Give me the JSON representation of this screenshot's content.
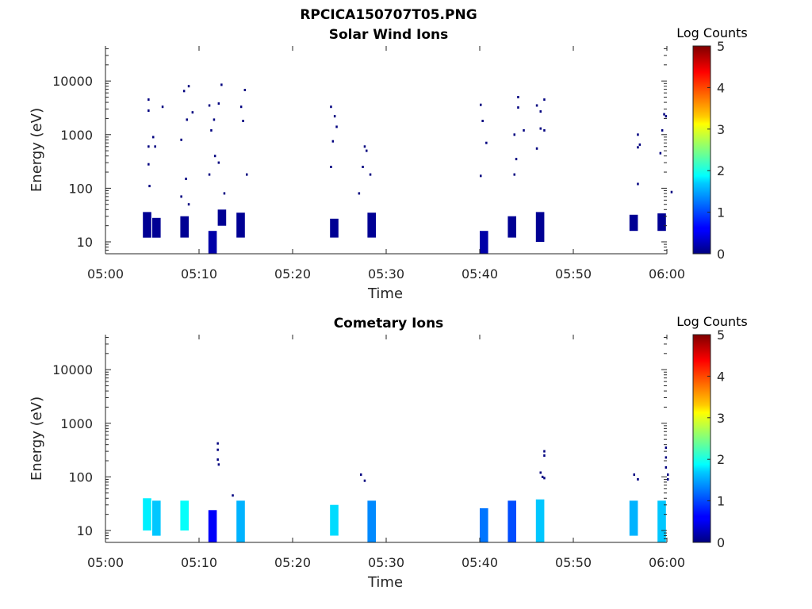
{
  "figure": {
    "title": "RPCICA150707T05.PNG"
  },
  "chart_data": [
    {
      "type": "heatmap",
      "title": "Solar Wind Ions",
      "xlabel": "Time",
      "ylabel": "Energy (eV)",
      "yscale": "log",
      "ylim": [
        6,
        45000
      ],
      "xlim": [
        "05:00",
        "06:00"
      ],
      "x_ticks": [
        "05:00",
        "05:10",
        "05:20",
        "05:30",
        "05:40",
        "05:50",
        "06:00"
      ],
      "y_ticks": [
        "10",
        "100",
        "1000",
        "10000"
      ],
      "colorbar": {
        "label": "Log Counts",
        "range": [
          0,
          5
        ],
        "ticks": [
          "0",
          "1",
          "2",
          "3",
          "4",
          "5"
        ],
        "colormap": "jet"
      },
      "grid": false,
      "cells": [
        {
          "t": "05:04",
          "e_min": 12,
          "e_max": 36,
          "log_counts": 0.1
        },
        {
          "t": "05:05",
          "e_min": 12,
          "e_max": 28,
          "log_counts": 0.1
        },
        {
          "t": "05:08",
          "e_min": 12,
          "e_max": 30,
          "log_counts": 0.1
        },
        {
          "t": "05:11",
          "e_min": 6,
          "e_max": 16,
          "log_counts": 0.2
        },
        {
          "t": "05:12",
          "e_min": 20,
          "e_max": 40,
          "log_counts": 0.1
        },
        {
          "t": "05:14",
          "e_min": 12,
          "e_max": 35,
          "log_counts": 0.1
        },
        {
          "t": "05:24",
          "e_min": 12,
          "e_max": 27,
          "log_counts": 0.1
        },
        {
          "t": "05:28",
          "e_min": 12,
          "e_max": 35,
          "log_counts": 0.1
        },
        {
          "t": "05:40",
          "e_min": 6,
          "e_max": 16,
          "log_counts": 0.2
        },
        {
          "t": "05:43",
          "e_min": 12,
          "e_max": 30,
          "log_counts": 0.1
        },
        {
          "t": "05:46",
          "e_min": 10,
          "e_max": 36,
          "log_counts": 0.1
        },
        {
          "t": "05:56",
          "e_min": 16,
          "e_max": 32,
          "log_counts": 0.1
        },
        {
          "t": "05:59",
          "e_min": 16,
          "e_max": 34,
          "log_counts": 0.1
        }
      ],
      "points": [
        {
          "t": "05:04.5",
          "e": 4500
        },
        {
          "t": "05:04.5",
          "e": 2800
        },
        {
          "t": "05:04.5",
          "e": 600
        },
        {
          "t": "05:04.5",
          "e": 280
        },
        {
          "t": "05:04.6",
          "e": 110
        },
        {
          "t": "05:05.0",
          "e": 900
        },
        {
          "t": "05:05.2",
          "e": 600
        },
        {
          "t": "05:06.0",
          "e": 3300
        },
        {
          "t": "05:08.0",
          "e": 800
        },
        {
          "t": "05:08.3",
          "e": 6500
        },
        {
          "t": "05:08.8",
          "e": 8000
        },
        {
          "t": "05:08.6",
          "e": 1900
        },
        {
          "t": "05:09.2",
          "e": 2600
        },
        {
          "t": "05:08.5",
          "e": 150
        },
        {
          "t": "05:08.0",
          "e": 70
        },
        {
          "t": "05:08.8",
          "e": 50
        },
        {
          "t": "05:11.0",
          "e": 3500
        },
        {
          "t": "05:11.5",
          "e": 1900
        },
        {
          "t": "05:11.2",
          "e": 1200
        },
        {
          "t": "05:11.6",
          "e": 400
        },
        {
          "t": "05:11.0",
          "e": 180
        },
        {
          "t": "05:12.0",
          "e": 300
        },
        {
          "t": "05:12.3",
          "e": 8500
        },
        {
          "t": "05:12.0",
          "e": 3800
        },
        {
          "t": "05:12.6",
          "e": 80
        },
        {
          "t": "05:14.4",
          "e": 3300
        },
        {
          "t": "05:14.6",
          "e": 1800
        },
        {
          "t": "05:14.8",
          "e": 6800
        },
        {
          "t": "05:15.0",
          "e": 180
        },
        {
          "t": "05:24.0",
          "e": 3300
        },
        {
          "t": "05:24.4",
          "e": 2200
        },
        {
          "t": "05:24.6",
          "e": 1400
        },
        {
          "t": "05:24.2",
          "e": 750
        },
        {
          "t": "05:24.0",
          "e": 250
        },
        {
          "t": "05:27.6",
          "e": 600
        },
        {
          "t": "05:27.8",
          "e": 500
        },
        {
          "t": "05:27.4",
          "e": 250
        },
        {
          "t": "05:28.2",
          "e": 180
        },
        {
          "t": "05:27.0",
          "e": 80
        },
        {
          "t": "05:40.0",
          "e": 3600
        },
        {
          "t": "05:40.2",
          "e": 1800
        },
        {
          "t": "05:40.6",
          "e": 700
        },
        {
          "t": "05:40.0",
          "e": 170
        },
        {
          "t": "05:43.6",
          "e": 1000
        },
        {
          "t": "05:44.0",
          "e": 3200
        },
        {
          "t": "05:44.0",
          "e": 5000
        },
        {
          "t": "05:44.6",
          "e": 1200
        },
        {
          "t": "05:43.8",
          "e": 350
        },
        {
          "t": "05:43.6",
          "e": 180
        },
        {
          "t": "05:46.0",
          "e": 3500
        },
        {
          "t": "05:46.4",
          "e": 2700
        },
        {
          "t": "05:46.8",
          "e": 4500
        },
        {
          "t": "05:46.4",
          "e": 1300
        },
        {
          "t": "05:46.8",
          "e": 1200
        },
        {
          "t": "05:46.0",
          "e": 550
        },
        {
          "t": "05:56.8",
          "e": 1000
        },
        {
          "t": "05:57.0",
          "e": 650
        },
        {
          "t": "05:56.8",
          "e": 580
        },
        {
          "t": "05:56.8",
          "e": 120
        },
        {
          "t": "05:59.4",
          "e": 1200
        },
        {
          "t": "05:59.2",
          "e": 450
        },
        {
          "t": "05:59.6",
          "e": 2400
        },
        {
          "t": "05:59.8",
          "e": 2200
        },
        {
          "t": "06:00.4",
          "e": 85
        }
      ]
    },
    {
      "type": "heatmap",
      "title": "Cometary Ions",
      "xlabel": "Time",
      "ylabel": "Energy (eV)",
      "yscale": "log",
      "ylim": [
        6,
        45000
      ],
      "xlim": [
        "05:00",
        "06:00"
      ],
      "x_ticks": [
        "05:00",
        "05:10",
        "05:20",
        "05:30",
        "05:40",
        "05:50",
        "06:00"
      ],
      "y_ticks": [
        "10",
        "100",
        "1000",
        "10000"
      ],
      "colorbar": {
        "label": "Log Counts",
        "range": [
          0,
          5
        ],
        "ticks": [
          "0",
          "1",
          "2",
          "3",
          "4",
          "5"
        ],
        "colormap": "jet"
      },
      "grid": false,
      "cells": [
        {
          "t": "05:04",
          "e_min": 10,
          "e_max": 40,
          "log_counts": 1.8
        },
        {
          "t": "05:05",
          "e_min": 8,
          "e_max": 36,
          "log_counts": 1.6
        },
        {
          "t": "05:08",
          "e_min": 10,
          "e_max": 36,
          "log_counts": 1.9
        },
        {
          "t": "05:11",
          "e_min": 6,
          "e_max": 24,
          "log_counts": 0.6
        },
        {
          "t": "05:14",
          "e_min": 6,
          "e_max": 36,
          "log_counts": 1.5
        },
        {
          "t": "05:24",
          "e_min": 8,
          "e_max": 30,
          "log_counts": 1.7
        },
        {
          "t": "05:28",
          "e_min": 6,
          "e_max": 36,
          "log_counts": 1.3
        },
        {
          "t": "05:40",
          "e_min": 6,
          "e_max": 26,
          "log_counts": 1.2
        },
        {
          "t": "05:43",
          "e_min": 6,
          "e_max": 36,
          "log_counts": 1.0
        },
        {
          "t": "05:46",
          "e_min": 6,
          "e_max": 38,
          "log_counts": 1.6
        },
        {
          "t": "05:56",
          "e_min": 8,
          "e_max": 36,
          "log_counts": 1.5
        },
        {
          "t": "05:59",
          "e_min": 6,
          "e_max": 36,
          "log_counts": 1.6
        }
      ],
      "points": [
        {
          "t": "05:11.9",
          "e": 420
        },
        {
          "t": "05:11.9",
          "e": 320
        },
        {
          "t": "05:11.9",
          "e": 210
        },
        {
          "t": "05:12.0",
          "e": 170
        },
        {
          "t": "05:13.5",
          "e": 45
        },
        {
          "t": "05:27.2",
          "e": 110
        },
        {
          "t": "05:27.6",
          "e": 85
        },
        {
          "t": "05:46.8",
          "e": 300
        },
        {
          "t": "05:46.8",
          "e": 250
        },
        {
          "t": "05:46.4",
          "e": 120
        },
        {
          "t": "05:46.6",
          "e": 100
        },
        {
          "t": "05:46.8",
          "e": 95
        },
        {
          "t": "05:56.4",
          "e": 110
        },
        {
          "t": "05:56.8",
          "e": 90
        },
        {
          "t": "05:59.8",
          "e": 350
        },
        {
          "t": "05:59.8",
          "e": 230
        },
        {
          "t": "05:59.8",
          "e": 150
        },
        {
          "t": "06:00.0",
          "e": 110
        },
        {
          "t": "06:00.0",
          "e": 90
        }
      ]
    }
  ]
}
